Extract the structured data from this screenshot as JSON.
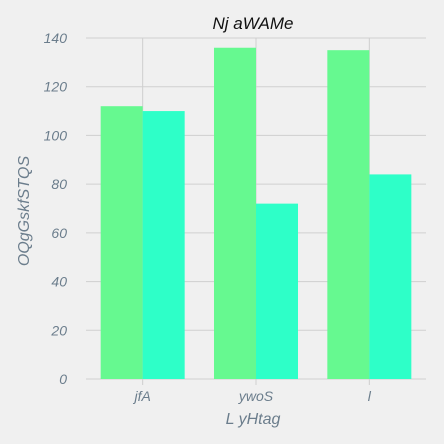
{
  "chart_data": {
    "type": "bar",
    "title": "Nj aWAMe",
    "xlabel": "L  yHtag",
    "ylabel": "OQgGskfSTQS",
    "categories": [
      "jfA",
      "ywoS",
      "l"
    ],
    "series": [
      {
        "values": [
          112,
          136,
          135
        ],
        "color": "#66f990"
      },
      {
        "values": [
          110,
          72,
          84
        ],
        "color": "#2effc8"
      }
    ],
    "ylim": [
      0,
      140
    ],
    "yticks": [
      0,
      20,
      40,
      60,
      80,
      100,
      120,
      140
    ],
    "grid": true,
    "legend": "none"
  }
}
